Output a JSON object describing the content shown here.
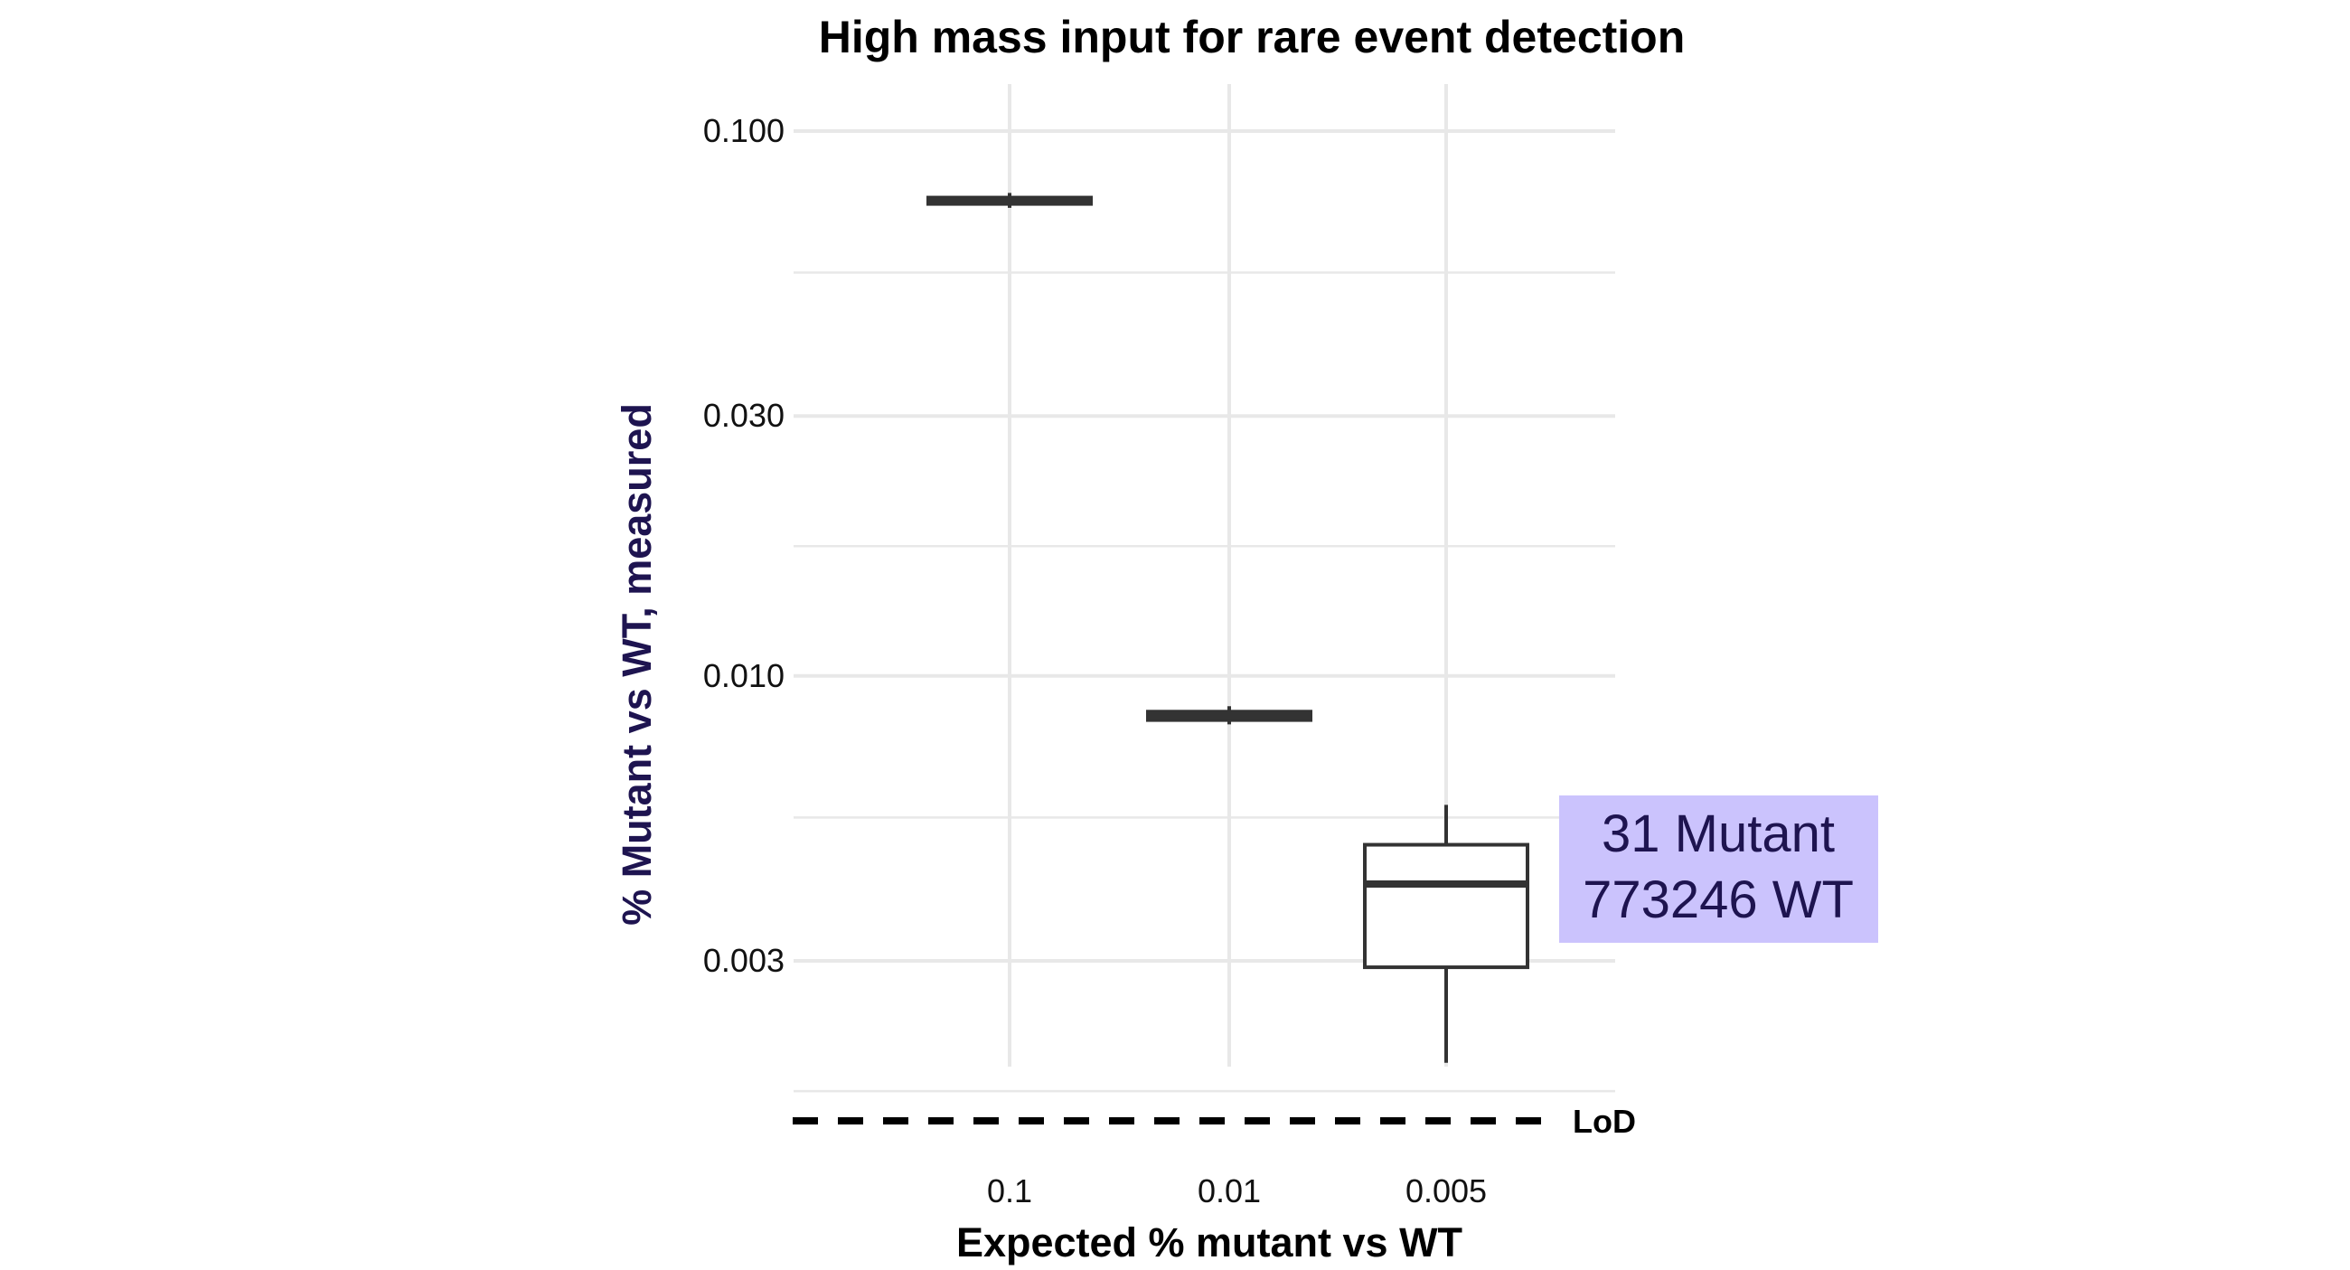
{
  "chart_data": {
    "type": "box",
    "title": "High mass input for rare event detection",
    "xlabel": "Expected % mutant vs WT",
    "ylabel": "% Mutant vs WT, measured",
    "y_scale": "log",
    "ylim": [
      0.0013,
      0.13
    ],
    "y_ticks": [
      {
        "value": 0.1,
        "label": "0.100"
      },
      {
        "value": 0.03,
        "label": "0.030"
      },
      {
        "value": 0.01,
        "label": "0.010"
      },
      {
        "value": 0.003,
        "label": "0.003"
      }
    ],
    "y_minor_gridlines": [
      0.055,
      0.0173,
      0.0055,
      0.00173
    ],
    "grid": true,
    "categories": [
      "0.1",
      "0.01",
      "0.005"
    ],
    "boxes": [
      {
        "category": "0.1",
        "whisker_low": 0.0723,
        "q1": 0.0735,
        "median": 0.0745,
        "q3": 0.0755,
        "whisker_high": 0.077
      },
      {
        "category": "0.01",
        "whisker_low": 0.00815,
        "q1": 0.0083,
        "median": 0.00845,
        "q3": 0.0086,
        "whisker_high": 0.0088
      },
      {
        "category": "0.005",
        "whisker_low": 0.00195,
        "q1": 0.00292,
        "median": 0.00415,
        "q3": 0.0049,
        "whisker_high": 0.0058
      }
    ],
    "reference_line": {
      "label": "LoD",
      "style": "dashed"
    },
    "annotation": {
      "lines": [
        "31 Mutant",
        "773246 WT"
      ],
      "background": "#cbc3fd",
      "color": "#1e1450"
    },
    "colors": {
      "axis_title": "#1e1450",
      "box_stroke": "#333333",
      "grid": "#e8e8e8"
    }
  }
}
